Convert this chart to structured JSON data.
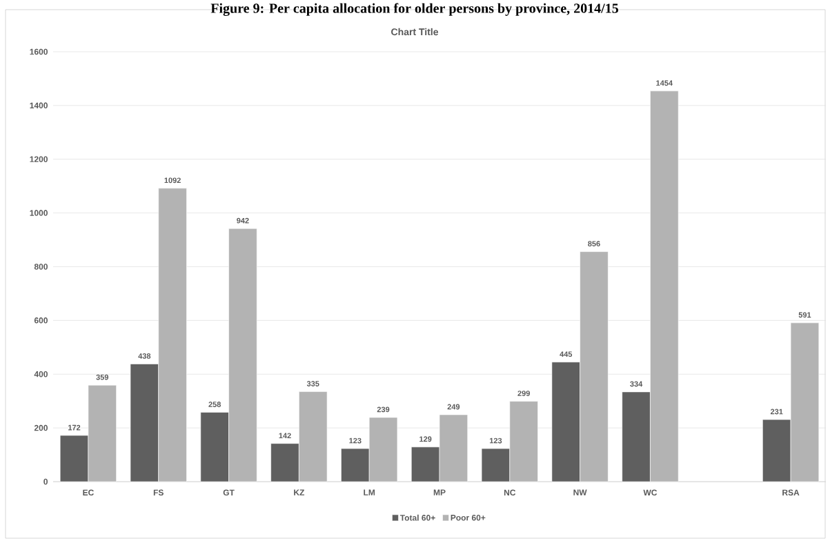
{
  "chart_data": {
    "type": "bar",
    "title": "Figure 9:  Per capita allocation for older persons by province, 2014/15",
    "subtitle": "Chart Title",
    "categories": [
      "EC",
      "FS",
      "GT",
      "KZ",
      "LM",
      "MP",
      "NC",
      "NW",
      "WC",
      null,
      "RSA"
    ],
    "series": [
      {
        "name": "Total 60+",
        "color": "#5f5f5f",
        "values": [
          172,
          438,
          258,
          142,
          123,
          129,
          123,
          445,
          334,
          null,
          231
        ]
      },
      {
        "name": "Poor 60+",
        "color": "#b3b3b3",
        "values": [
          359,
          1092,
          942,
          335,
          239,
          249,
          299,
          856,
          1454,
          null,
          591
        ]
      }
    ],
    "ylim": [
      0,
      1600
    ],
    "yticks": [
      0,
      200,
      400,
      600,
      800,
      1000,
      1200,
      1400,
      1600
    ],
    "grid": "y",
    "legend": "bottom",
    "data_labels": true
  }
}
